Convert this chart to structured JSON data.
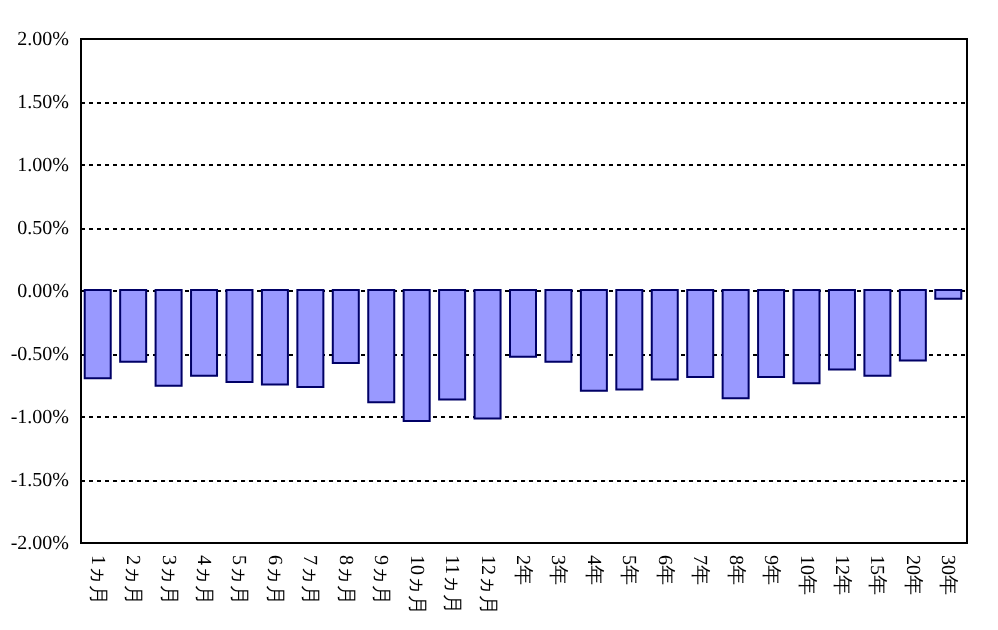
{
  "chart_data": {
    "type": "bar",
    "categories": [
      "1ヵ月",
      "2ヵ月",
      "3ヵ月",
      "4ヵ月",
      "5ヵ月",
      "6ヵ月",
      "7ヵ月",
      "8ヵ月",
      "9ヵ月",
      "10ヵ月",
      "11ヵ月",
      "12ヵ月",
      "2年",
      "3年",
      "4年",
      "5年",
      "6年",
      "7年",
      "8年",
      "9年",
      "10年",
      "12年",
      "15年",
      "20年",
      "30年"
    ],
    "values": [
      -0.7,
      -0.57,
      -0.76,
      -0.68,
      -0.73,
      -0.75,
      -0.77,
      -0.58,
      -0.89,
      -1.04,
      -0.87,
      -1.02,
      -0.53,
      -0.57,
      -0.8,
      -0.79,
      -0.71,
      -0.69,
      -0.86,
      -0.69,
      -0.74,
      -0.63,
      -0.68,
      -0.56,
      -0.07
    ],
    "color": "#9999ff",
    "ylim": [
      -2,
      2
    ],
    "yticks": [
      {
        "value": -2,
        "label": "-2.00%"
      },
      {
        "value": -1.5,
        "label": "-1.50%"
      },
      {
        "value": -1,
        "label": "-1.00%"
      },
      {
        "value": -0.5,
        "label": "-0.50%"
      },
      {
        "value": 0,
        "label": "0.00%"
      },
      {
        "value": 0.5,
        "label": "0.50%"
      },
      {
        "value": 1,
        "label": "1.00%"
      },
      {
        "value": 1.5,
        "label": "1.50%"
      },
      {
        "value": 2,
        "label": "2.00%"
      }
    ],
    "grid": "y"
  }
}
